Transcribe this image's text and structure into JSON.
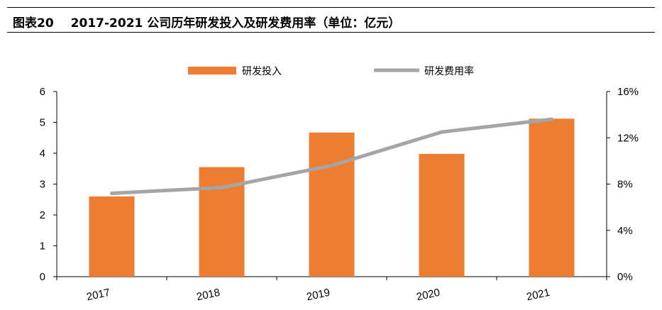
{
  "header": {
    "label": "图表20",
    "title": "2017-2021 公司历年研发投入及研发费用率（单位：亿元）"
  },
  "colors": {
    "bar": "#ed7d31",
    "line": "#a5a5a5",
    "axis": "#000000"
  },
  "chart_data": {
    "type": "bar",
    "categories": [
      "2017",
      "2018",
      "2019",
      "2020",
      "2021"
    ],
    "series": [
      {
        "name": "研发投入",
        "type": "bar",
        "axis": "left",
        "values": [
          2.6,
          3.55,
          4.67,
          3.98,
          5.12
        ]
      },
      {
        "name": "研发费用率",
        "type": "line",
        "axis": "right",
        "values": [
          0.072,
          0.077,
          0.096,
          0.125,
          0.136
        ]
      }
    ],
    "y_left": {
      "min": 0,
      "max": 6,
      "ticks": [
        "0",
        "1",
        "2",
        "3",
        "4",
        "5",
        "6"
      ]
    },
    "y_right": {
      "min": 0,
      "max": 0.16,
      "ticks": [
        "0%",
        "4%",
        "8%",
        "12%",
        "16%"
      ]
    },
    "legend_position": "top-center",
    "grid": false
  }
}
